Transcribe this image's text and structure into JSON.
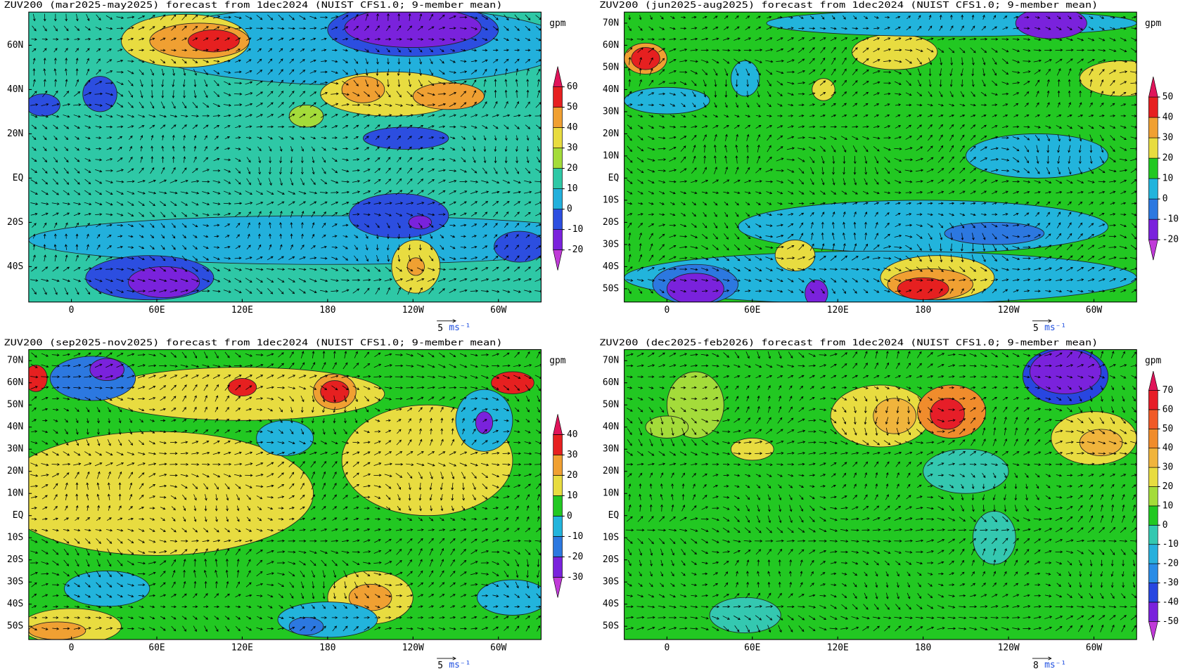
{
  "panels": [
    {
      "title": "ZUV200 (mar2025-may2025) forecast from 1dec2024 (NUIST CFS1.0; 9-member mean)",
      "units": "gpm",
      "xlim": [
        -30,
        330
      ],
      "ylim": [
        -56,
        75
      ],
      "lat_ticks": [
        {
          "value": 60,
          "label": "60N"
        },
        {
          "value": 40,
          "label": "40N"
        },
        {
          "value": 20,
          "label": "20N"
        },
        {
          "value": 0,
          "label": "EQ"
        },
        {
          "value": -20,
          "label": "20S"
        },
        {
          "value": -40,
          "label": "40S"
        }
      ],
      "lon_ticks": [
        0,
        {
          "value": 60,
          "label": "60E"
        },
        {
          "value": 120,
          "label": "120E"
        },
        180,
        {
          "value": 240,
          "label": "120W"
        },
        {
          "value": 300,
          "label": "60W"
        }
      ],
      "colorbar": {
        "levels": [
          -20,
          -10,
          0,
          10,
          20,
          30,
          40,
          50,
          60
        ],
        "colors": [
          "#c03ad8",
          "#7a22dc",
          "#2c4ee0",
          "#22b0dc",
          "#2ec8a6",
          "#a4dc3a",
          "#e8dc40",
          "#f0a032",
          "#e62020",
          "#e0145a"
        ]
      },
      "vector_ref": {
        "value": "5",
        "unit": "ms⁻¹"
      }
    },
    {
      "title": "ZUV200 (jun2025-aug2025) forecast from 1dec2024 (NUIST CFS1.0; 9-member mean)",
      "units": "gpm",
      "xlim": [
        -30,
        330
      ],
      "ylim": [
        -56,
        75
      ],
      "lat_ticks": [
        {
          "value": 70,
          "label": "70N"
        },
        {
          "value": 60,
          "label": "60N"
        },
        {
          "value": 50,
          "label": "50N"
        },
        {
          "value": 40,
          "label": "40N"
        },
        {
          "value": 30,
          "label": "30N"
        },
        {
          "value": 20,
          "label": "20N"
        },
        {
          "value": 10,
          "label": "10N"
        },
        {
          "value": 0,
          "label": "EQ"
        },
        {
          "value": -10,
          "label": "10S"
        },
        {
          "value": -20,
          "label": "20S"
        },
        {
          "value": -30,
          "label": "30S"
        },
        {
          "value": -40,
          "label": "40S"
        },
        {
          "value": -50,
          "label": "50S"
        }
      ],
      "lon_ticks": [
        0,
        {
          "value": 60,
          "label": "60E"
        },
        {
          "value": 120,
          "label": "120E"
        },
        180,
        {
          "value": 240,
          "label": "120W"
        },
        {
          "value": 300,
          "label": "60W"
        }
      ],
      "colorbar": {
        "levels": [
          -20,
          -10,
          0,
          10,
          20,
          30,
          40,
          50
        ],
        "colors": [
          "#c03ad8",
          "#7a22dc",
          "#2c78e0",
          "#22b4dc",
          "#22c822",
          "#e8dc40",
          "#f0a032",
          "#e62020",
          "#e0145a"
        ]
      },
      "vector_ref": {
        "value": "5",
        "unit": "ms⁻¹"
      }
    },
    {
      "title": "ZUV200 (sep2025-nov2025) forecast from 1dec2024 (NUIST CFS1.0; 9-member mean)",
      "units": "gpm",
      "xlim": [
        -30,
        330
      ],
      "ylim": [
        -56,
        75
      ],
      "lat_ticks": [
        {
          "value": 70,
          "label": "70N"
        },
        {
          "value": 60,
          "label": "60N"
        },
        {
          "value": 50,
          "label": "50N"
        },
        {
          "value": 40,
          "label": "40N"
        },
        {
          "value": 30,
          "label": "30N"
        },
        {
          "value": 20,
          "label": "20N"
        },
        {
          "value": 10,
          "label": "10N"
        },
        {
          "value": 0,
          "label": "EQ"
        },
        {
          "value": -10,
          "label": "10S"
        },
        {
          "value": -20,
          "label": "20S"
        },
        {
          "value": -30,
          "label": "30S"
        },
        {
          "value": -40,
          "label": "40S"
        },
        {
          "value": -50,
          "label": "50S"
        }
      ],
      "lon_ticks": [
        0,
        {
          "value": 60,
          "label": "60E"
        },
        {
          "value": 120,
          "label": "120E"
        },
        180,
        {
          "value": 240,
          "label": "120W"
        },
        {
          "value": 300,
          "label": "60W"
        }
      ],
      "colorbar": {
        "levels": [
          -30,
          -20,
          -10,
          0,
          10,
          20,
          30,
          40
        ],
        "colors": [
          "#c03ad8",
          "#7a22dc",
          "#2c78e0",
          "#22b4dc",
          "#22c822",
          "#e8dc40",
          "#f0a032",
          "#e62020",
          "#e0145a"
        ]
      },
      "vector_ref": {
        "value": "5",
        "unit": "ms⁻¹"
      }
    },
    {
      "title": "ZUV200 (dec2025-feb2026) forecast from 1dec2024 (NUIST CFS1.0; 9-member mean)",
      "units": "gpm",
      "xlim": [
        -30,
        330
      ],
      "ylim": [
        -56,
        75
      ],
      "lat_ticks": [
        {
          "value": 70,
          "label": "70N"
        },
        {
          "value": 60,
          "label": "60N"
        },
        {
          "value": 50,
          "label": "50N"
        },
        {
          "value": 40,
          "label": "40N"
        },
        {
          "value": 30,
          "label": "30N"
        },
        {
          "value": 20,
          "label": "20N"
        },
        {
          "value": 10,
          "label": "10N"
        },
        {
          "value": 0,
          "label": "EQ"
        },
        {
          "value": -10,
          "label": "10S"
        },
        {
          "value": -20,
          "label": "20S"
        },
        {
          "value": -30,
          "label": "30S"
        },
        {
          "value": -40,
          "label": "40S"
        },
        {
          "value": -50,
          "label": "50S"
        }
      ],
      "lon_ticks": [
        0,
        {
          "value": 60,
          "label": "60E"
        },
        {
          "value": 120,
          "label": "120E"
        },
        180,
        {
          "value": 240,
          "label": "120W"
        },
        {
          "value": 300,
          "label": "60W"
        }
      ],
      "colorbar": {
        "levels": [
          -50,
          -40,
          -30,
          -20,
          -10,
          0,
          10,
          20,
          30,
          40,
          50,
          60,
          70
        ],
        "colors": [
          "#c03ad8",
          "#7a22dc",
          "#2846e0",
          "#2a8ce6",
          "#28b0dc",
          "#34c8b0",
          "#22c822",
          "#a4dc3a",
          "#e8dc40",
          "#f0b43c",
          "#f08c2c",
          "#f05a28",
          "#e61e28",
          "#e0145a"
        ]
      },
      "vector_ref": {
        "value": "8",
        "unit": "ms⁻¹"
      }
    }
  ]
}
